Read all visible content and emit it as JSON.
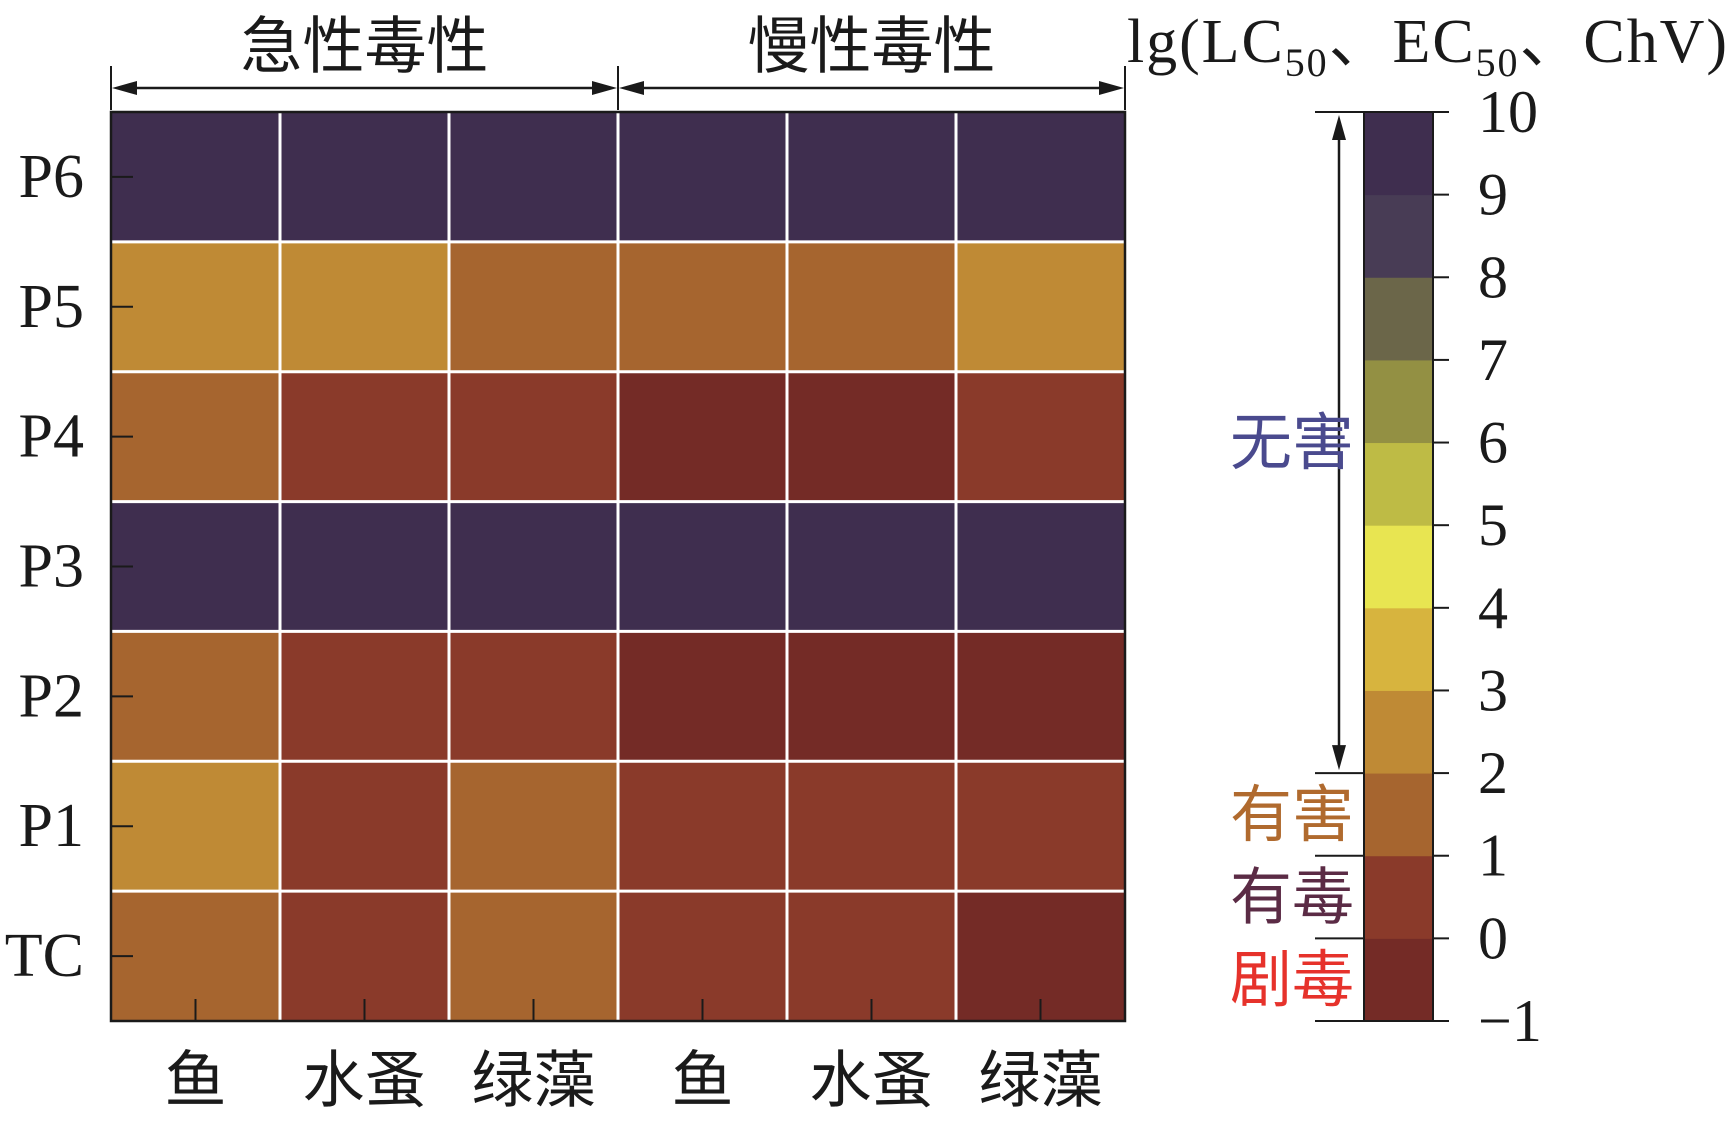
{
  "chart_data": {
    "type": "heatmap",
    "groups": [
      {
        "label": "急性毒性",
        "span": 3
      },
      {
        "label": "慢性毒性",
        "span": 3
      }
    ],
    "columns": [
      "鱼",
      "水蚤",
      "绿藻",
      "鱼",
      "水蚤",
      "绿藻"
    ],
    "rows": [
      "P6",
      "P5",
      "P4",
      "P3",
      "P2",
      "P1",
      "TC"
    ],
    "values": [
      [
        9.5,
        9.5,
        9.5,
        9.5,
        9.5,
        9.5
      ],
      [
        2.5,
        2.5,
        1.5,
        1.5,
        1.5,
        2.5
      ],
      [
        1.5,
        0.5,
        0.5,
        -0.5,
        -0.5,
        0.5
      ],
      [
        9.5,
        9.5,
        9.5,
        9.5,
        9.5,
        9.5
      ],
      [
        1.5,
        0.5,
        0.5,
        -0.5,
        -0.5,
        -0.5
      ],
      [
        2.5,
        0.5,
        1.5,
        0.5,
        0.5,
        0.5
      ],
      [
        1.5,
        0.5,
        1.5,
        0.5,
        0.5,
        -0.5
      ]
    ],
    "colorbar": {
      "label_parts": [
        {
          "text": "lg(LC"
        },
        {
          "text": "50",
          "sub": true
        },
        {
          "text": "、EC"
        },
        {
          "text": "50",
          "sub": true
        },
        {
          "text": "、ChV)"
        }
      ],
      "range": [
        -1,
        10
      ],
      "ticks": [
        10,
        9,
        8,
        7,
        6,
        5,
        4,
        3,
        2,
        1,
        0,
        -1
      ],
      "tick_labels": [
        "10",
        "9",
        "8",
        "7",
        "6",
        "5",
        "4",
        "3",
        "2",
        "1",
        "0",
        "−1"
      ],
      "bin_colors": [
        "#742b26",
        "#8a3a2a",
        "#a6652f",
        "#bf8a35",
        "#d7b43e",
        "#e8e551",
        "#bebb45",
        "#939043",
        "#6b6649",
        "#483c55",
        "#3f2e4f"
      ]
    },
    "classes": [
      {
        "label": "无害",
        "range": [
          2,
          10
        ],
        "color": "#4a4a8e"
      },
      {
        "label": "有害",
        "range": [
          1,
          2
        ],
        "color": "#b06a2e"
      },
      {
        "label": "有毒",
        "range": [
          0,
          1
        ],
        "color": "#5b2b45"
      },
      {
        "label": "剧毒",
        "range": [
          -1,
          0
        ],
        "color": "#e6322b"
      }
    ]
  }
}
